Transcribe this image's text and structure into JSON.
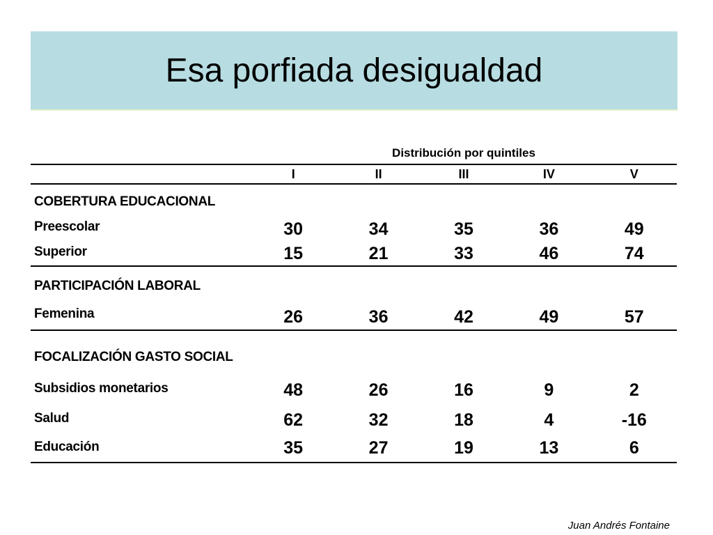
{
  "slide": {
    "title": "Esa porfiada desigualdad",
    "author": "Juan Andrés Fontaine"
  },
  "table": {
    "group_header": "Distribución por quintiles",
    "columns": [
      "I",
      "II",
      "III",
      "IV",
      "V"
    ],
    "sections": [
      {
        "heading": "COBERTURA EDUCACIONAL",
        "rows": [
          {
            "label": "Preescolar",
            "values": [
              "30",
              "34",
              "35",
              "36",
              "49"
            ]
          },
          {
            "label": "Superior",
            "values": [
              "15",
              "21",
              "33",
              "46",
              "74"
            ]
          }
        ]
      },
      {
        "heading": "PARTICIPACIÓN LABORAL",
        "rows": [
          {
            "label": "Femenina",
            "values": [
              "26",
              "36",
              "42",
              "49",
              "57"
            ]
          }
        ]
      },
      {
        "heading": "FOCALIZACIÓN GASTO SOCIAL",
        "rows": [
          {
            "label": "Subsidios monetarios",
            "values": [
              "48",
              "26",
              "16",
              "9",
              "2"
            ]
          },
          {
            "label": "Salud",
            "values": [
              "62",
              "32",
              "18",
              "4",
              "-16"
            ]
          },
          {
            "label": "Educación",
            "values": [
              "35",
              "27",
              "19",
              "13",
              "6"
            ]
          }
        ]
      }
    ]
  }
}
